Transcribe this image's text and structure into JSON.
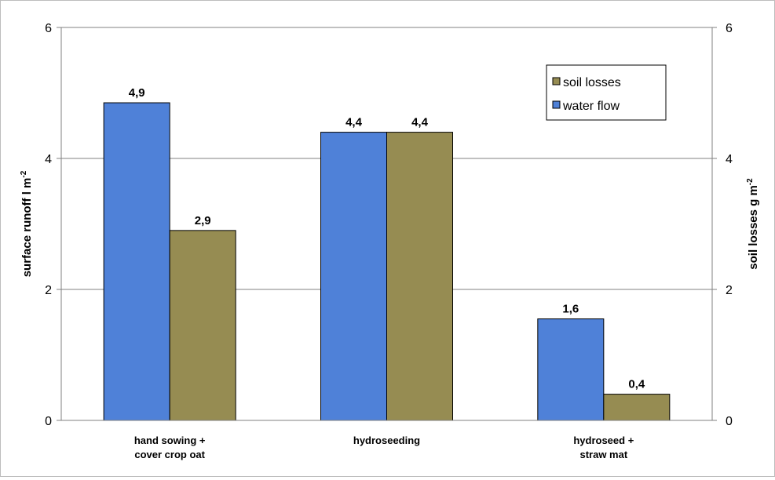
{
  "chart_data": {
    "type": "bar",
    "categories": [
      [
        "hand sowing +",
        "cover crop oat"
      ],
      [
        "hydroseeding"
      ],
      [
        "hydroseed +",
        "straw mat"
      ]
    ],
    "series": [
      {
        "name": "water flow",
        "axis": "left",
        "color": "#4f81d8",
        "values": [
          4.85,
          4.4,
          1.55
        ],
        "labels": [
          "4,9",
          "4,4",
          "1,6"
        ]
      },
      {
        "name": "soil losses",
        "axis": "right",
        "color": "#968c52",
        "values": [
          2.9,
          4.4,
          0.4
        ],
        "labels": [
          "2,9",
          "4,4",
          "0,4"
        ]
      }
    ],
    "ylabel_left": {
      "text": "surface runoff l m",
      "sup": "-2"
    },
    "ylabel_right": {
      "text": "soil losses g m",
      "sup": "-2"
    },
    "ylim_left": [
      0,
      6
    ],
    "ylim_right": [
      0,
      6
    ],
    "yticks_left": [
      0,
      2,
      4,
      6
    ],
    "yticks_right": [
      0,
      2,
      4,
      6
    ],
    "grid": true,
    "legend": {
      "placement": "top-right",
      "order": [
        "soil losses",
        "water flow"
      ]
    }
  }
}
